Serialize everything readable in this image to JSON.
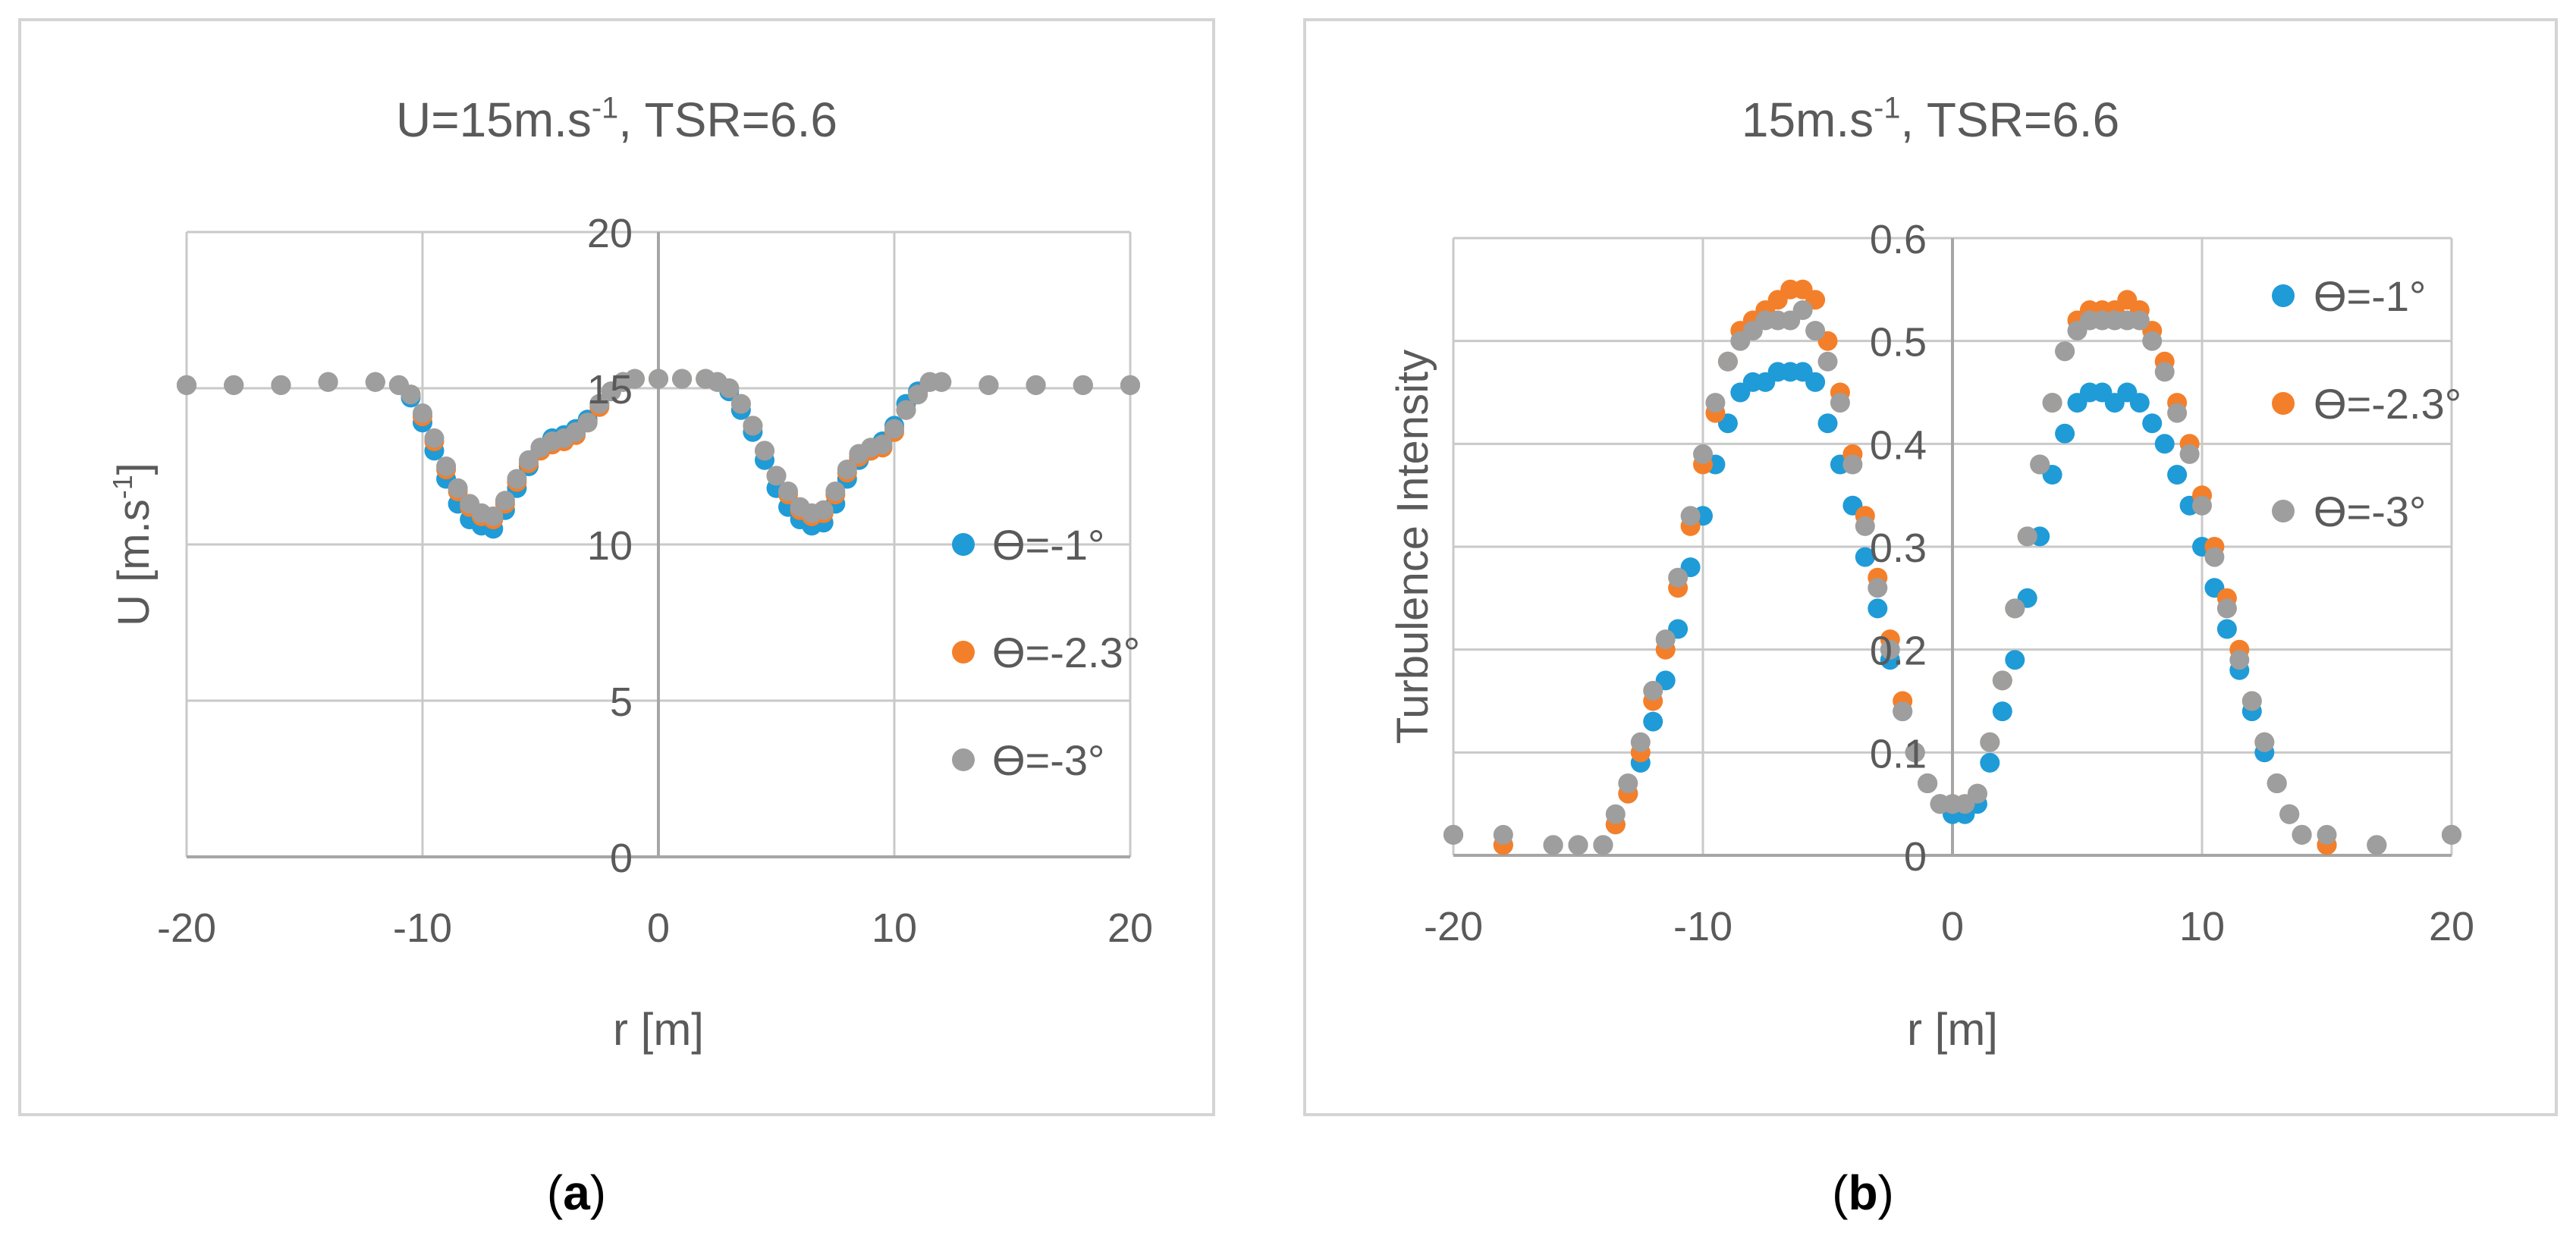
{
  "colors": {
    "series_blue": "#1f9bd7",
    "series_orange": "#f47f2a",
    "series_gray": "#9e9e9e",
    "text": "#5a5a5a",
    "grid": "#c9c9c9",
    "axis": "#a6a6a6",
    "frame": "#d4d4d4"
  },
  "captions": {
    "a": {
      "open": "(",
      "letter": "a",
      "close": ")"
    },
    "b": {
      "open": "(",
      "letter": "b",
      "close": ")"
    }
  },
  "chart_data": [
    {
      "id": "a",
      "type": "scatter",
      "title": {
        "main": "U=15m.s",
        "sup": "-1",
        "rest": ", TSR=6.6"
      },
      "xlabel": "r [m]",
      "ylabel": {
        "main": "U [m.s",
        "sup": "-1",
        "rest": "]"
      },
      "xlim": [
        -20,
        20
      ],
      "ylim": [
        0,
        20
      ],
      "xticks": [
        -20,
        -10,
        0,
        10,
        20
      ],
      "yticks": [
        0,
        5,
        10,
        15,
        20
      ],
      "xtick_labels": [
        "-20",
        "-10",
        "0",
        "10",
        "20"
      ],
      "ytick_labels": [
        "0",
        "5",
        "10",
        "15",
        "20"
      ],
      "grid": true,
      "legend_position": "right",
      "series": [
        {
          "name": "ϴ=-1°",
          "color": "#1f9bd7",
          "x": [
            -20,
            -18,
            -16,
            -14,
            -12,
            -11,
            -10.5,
            -10,
            -9.5,
            -9,
            -8.5,
            -8,
            -7.5,
            -7,
            -6.5,
            -6,
            -5.5,
            -5,
            -4.5,
            -4,
            -3.5,
            -3,
            -2.5,
            -2,
            -1.5,
            -1,
            0,
            1,
            2,
            2.5,
            3,
            3.5,
            4,
            4.5,
            5,
            5.5,
            6,
            6.5,
            7,
            7.5,
            8,
            8.5,
            9,
            9.5,
            10,
            10.5,
            11,
            11.5,
            12,
            14,
            16,
            18,
            20
          ],
          "y": [
            15.1,
            15.1,
            15.1,
            15.2,
            15.2,
            15.1,
            14.7,
            13.9,
            13.0,
            12.1,
            11.3,
            10.8,
            10.6,
            10.5,
            11.1,
            11.8,
            12.5,
            13.1,
            13.4,
            13.5,
            13.7,
            14.0,
            14.5,
            14.9,
            15.2,
            15.3,
            15.3,
            15.3,
            15.3,
            15.2,
            14.9,
            14.3,
            13.6,
            12.7,
            11.8,
            11.2,
            10.8,
            10.6,
            10.7,
            11.3,
            12.1,
            12.7,
            13.0,
            13.3,
            13.8,
            14.5,
            14.9,
            15.2,
            15.2,
            15.1,
            15.1,
            15.1,
            15.1
          ]
        },
        {
          "name": "ϴ=-2.3°",
          "color": "#f47f2a",
          "x": [
            -20,
            -18,
            -16,
            -14,
            -12,
            -11,
            -10.5,
            -10,
            -9.5,
            -9,
            -8.5,
            -8,
            -7.5,
            -7,
            -6.5,
            -6,
            -5.5,
            -5,
            -4.5,
            -4,
            -3.5,
            -3,
            -2.5,
            -2,
            -1.5,
            -1,
            0,
            1,
            2,
            2.5,
            3,
            3.5,
            4,
            4.5,
            5,
            5.5,
            6,
            6.5,
            7,
            7.5,
            8,
            8.5,
            9,
            9.5,
            10,
            10.5,
            11,
            11.5,
            12,
            14,
            16,
            18,
            20
          ],
          "y": [
            15.1,
            15.1,
            15.1,
            15.2,
            15.2,
            15.1,
            14.8,
            14.1,
            13.3,
            12.4,
            11.7,
            11.2,
            10.9,
            10.8,
            11.3,
            12.0,
            12.6,
            13.0,
            13.2,
            13.3,
            13.5,
            13.9,
            14.4,
            14.9,
            15.2,
            15.3,
            15.3,
            15.3,
            15.3,
            15.2,
            15.0,
            14.5,
            13.8,
            13.0,
            12.2,
            11.6,
            11.1,
            10.9,
            11.0,
            11.6,
            12.3,
            12.8,
            13.0,
            13.1,
            13.6,
            14.3,
            14.8,
            15.2,
            15.2,
            15.1,
            15.1,
            15.1,
            15.1
          ]
        },
        {
          "name": "ϴ=-3°",
          "color": "#9e9e9e",
          "x": [
            -20,
            -18,
            -16,
            -14,
            -12,
            -11,
            -10.5,
            -10,
            -9.5,
            -9,
            -8.5,
            -8,
            -7.5,
            -7,
            -6.5,
            -6,
            -5.5,
            -5,
            -4.5,
            -4,
            -3.5,
            -3,
            -2.5,
            -2,
            -1.5,
            -1,
            0,
            1,
            2,
            2.5,
            3,
            3.5,
            4,
            4.5,
            5,
            5.5,
            6,
            6.5,
            7,
            7.5,
            8,
            8.5,
            9,
            9.5,
            10,
            10.5,
            11,
            11.5,
            12,
            14,
            16,
            18,
            20
          ],
          "y": [
            15.1,
            15.1,
            15.1,
            15.2,
            15.2,
            15.1,
            14.8,
            14.2,
            13.4,
            12.5,
            11.8,
            11.3,
            11.0,
            10.9,
            11.4,
            12.1,
            12.7,
            13.1,
            13.3,
            13.4,
            13.6,
            13.9,
            14.5,
            14.9,
            15.2,
            15.3,
            15.3,
            15.3,
            15.3,
            15.2,
            15.0,
            14.5,
            13.8,
            13.0,
            12.2,
            11.7,
            11.2,
            11.0,
            11.1,
            11.7,
            12.4,
            12.9,
            13.1,
            13.2,
            13.7,
            14.3,
            14.8,
            15.2,
            15.2,
            15.1,
            15.1,
            15.1,
            15.1
          ]
        }
      ]
    },
    {
      "id": "b",
      "type": "scatter",
      "title": {
        "main": "15m.s",
        "sup": "-1",
        "rest": ", TSR=6.6"
      },
      "xlabel": "r [m]",
      "ylabel": {
        "main": "Turbulence Intensity",
        "sup": "",
        "rest": ""
      },
      "xlim": [
        -20,
        20
      ],
      "ylim": [
        0,
        0.6
      ],
      "xticks": [
        -20,
        -10,
        0,
        10,
        20
      ],
      "yticks": [
        0,
        0.1,
        0.2,
        0.3,
        0.4,
        0.5,
        0.6
      ],
      "xtick_labels": [
        "-20",
        "-10",
        "0",
        "10",
        "20"
      ],
      "ytick_labels": [
        "0",
        "0.1",
        "0.2",
        "0.3",
        "0.4",
        "0.5",
        "0.6"
      ],
      "grid": true,
      "legend_position": "top-right",
      "series": [
        {
          "name": "ϴ=-1°",
          "color": "#1f9bd7",
          "x": [
            -20,
            -18,
            -16,
            -15,
            -14,
            -13.5,
            -13,
            -12.5,
            -12,
            -11.5,
            -11,
            -10.5,
            -10,
            -9.5,
            -9,
            -8.5,
            -8,
            -7.5,
            -7,
            -6.5,
            -6,
            -5.5,
            -5,
            -4.5,
            -4,
            -3.5,
            -3,
            -2.5,
            -2,
            -1.5,
            -1,
            -0.5,
            0,
            0.5,
            1,
            1.5,
            2,
            2.5,
            3,
            3.5,
            4,
            4.5,
            5,
            5.5,
            6,
            6.5,
            7,
            7.5,
            8,
            8.5,
            9,
            9.5,
            10,
            10.5,
            11,
            11.5,
            12,
            12.5,
            13,
            13.5,
            14,
            15,
            17,
            20
          ],
          "y": [
            0.02,
            0.01,
            0.01,
            0.01,
            0.01,
            0.03,
            0.06,
            0.09,
            0.13,
            0.17,
            0.22,
            0.28,
            0.33,
            0.38,
            0.42,
            0.45,
            0.46,
            0.46,
            0.47,
            0.47,
            0.47,
            0.46,
            0.42,
            0.38,
            0.34,
            0.29,
            0.24,
            0.19,
            0.14,
            0.1,
            0.07,
            0.05,
            0.04,
            0.04,
            0.05,
            0.09,
            0.14,
            0.19,
            0.25,
            0.31,
            0.37,
            0.41,
            0.44,
            0.45,
            0.45,
            0.44,
            0.45,
            0.44,
            0.42,
            0.4,
            0.37,
            0.34,
            0.3,
            0.26,
            0.22,
            0.18,
            0.14,
            0.1,
            0.07,
            0.04,
            0.02,
            0.01,
            0.01,
            0.02
          ]
        },
        {
          "name": "ϴ=-2.3°",
          "color": "#f47f2a",
          "x": [
            -20,
            -18,
            -16,
            -15,
            -14,
            -13.5,
            -13,
            -12.5,
            -12,
            -11.5,
            -11,
            -10.5,
            -10,
            -9.5,
            -9,
            -8.5,
            -8,
            -7.5,
            -7,
            -6.5,
            -6,
            -5.5,
            -5,
            -4.5,
            -4,
            -3.5,
            -3,
            -2.5,
            -2,
            -1.5,
            -1,
            -0.5,
            0,
            0.5,
            1,
            1.5,
            2,
            2.5,
            3,
            3.5,
            4,
            4.5,
            5,
            5.5,
            6,
            6.5,
            7,
            7.5,
            8,
            8.5,
            9,
            9.5,
            10,
            10.5,
            11,
            11.5,
            12,
            12.5,
            13,
            13.5,
            14,
            15,
            17,
            20
          ],
          "y": [
            0.02,
            0.01,
            0.01,
            0.01,
            0.01,
            0.03,
            0.06,
            0.1,
            0.15,
            0.2,
            0.26,
            0.32,
            0.38,
            0.43,
            0.48,
            0.51,
            0.52,
            0.53,
            0.54,
            0.55,
            0.55,
            0.54,
            0.5,
            0.45,
            0.39,
            0.33,
            0.27,
            0.21,
            0.15,
            0.1,
            0.07,
            0.05,
            0.05,
            0.05,
            0.06,
            0.11,
            0.17,
            0.24,
            0.31,
            0.38,
            0.44,
            0.49,
            0.52,
            0.53,
            0.53,
            0.53,
            0.54,
            0.53,
            0.51,
            0.48,
            0.44,
            0.4,
            0.35,
            0.3,
            0.25,
            0.2,
            0.15,
            0.11,
            0.07,
            0.04,
            0.02,
            0.01,
            0.01,
            0.02
          ]
        },
        {
          "name": "ϴ=-3°",
          "color": "#9e9e9e",
          "x": [
            -20,
            -18,
            -16,
            -15,
            -14,
            -13.5,
            -13,
            -12.5,
            -12,
            -11.5,
            -11,
            -10.5,
            -10,
            -9.5,
            -9,
            -8.5,
            -8,
            -7.5,
            -7,
            -6.5,
            -6,
            -5.5,
            -5,
            -4.5,
            -4,
            -3.5,
            -3,
            -2.5,
            -2,
            -1.5,
            -1,
            -0.5,
            0,
            0.5,
            1,
            1.5,
            2,
            2.5,
            3,
            3.5,
            4,
            4.5,
            5,
            5.5,
            6,
            6.5,
            7,
            7.5,
            8,
            8.5,
            9,
            9.5,
            10,
            10.5,
            11,
            11.5,
            12,
            12.5,
            13,
            13.5,
            14,
            15,
            17,
            20
          ],
          "y": [
            0.02,
            0.02,
            0.01,
            0.01,
            0.01,
            0.04,
            0.07,
            0.11,
            0.16,
            0.21,
            0.27,
            0.33,
            0.39,
            0.44,
            0.48,
            0.5,
            0.51,
            0.52,
            0.52,
            0.52,
            0.53,
            0.51,
            0.48,
            0.44,
            0.38,
            0.32,
            0.26,
            0.2,
            0.14,
            0.1,
            0.07,
            0.05,
            0.05,
            0.05,
            0.06,
            0.11,
            0.17,
            0.24,
            0.31,
            0.38,
            0.44,
            0.49,
            0.51,
            0.52,
            0.52,
            0.52,
            0.52,
            0.52,
            0.5,
            0.47,
            0.43,
            0.39,
            0.34,
            0.29,
            0.24,
            0.19,
            0.15,
            0.11,
            0.07,
            0.04,
            0.02,
            0.02,
            0.01,
            0.02
          ]
        }
      ]
    }
  ]
}
